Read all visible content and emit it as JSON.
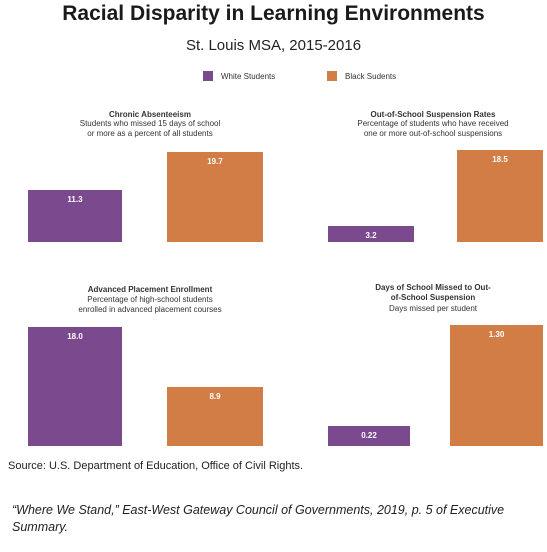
{
  "title": "Racial Disparity in Learning Environments",
  "subtitle": "St. Louis MSA, 2015-2016",
  "legend": [
    {
      "label": "White Students",
      "color": "#7b4a8e"
    },
    {
      "label": "Black Sudents",
      "color": "#d27d45"
    }
  ],
  "chart_data": [
    {
      "type": "bar",
      "title": "Chronic Absenteeism",
      "description_lines": [
        "Students who missed 15 days of school",
        "or more as a percent of all students"
      ],
      "categories": [
        "White Students",
        "Black Sudents"
      ],
      "values": [
        11.3,
        19.7
      ],
      "value_labels": [
        "11.3",
        "19.7"
      ]
    },
    {
      "type": "bar",
      "title": "Out-of-School Suspension Rates",
      "description_lines": [
        "Percentage of students who have received",
        "one or more out-of-school suspensions"
      ],
      "categories": [
        "White Students",
        "Black Sudents"
      ],
      "values": [
        3.2,
        18.5
      ],
      "value_labels": [
        "3.2",
        "18.5"
      ]
    },
    {
      "type": "bar",
      "title": "Advanced Placement Enrollment",
      "description_lines": [
        "Percentage of high-school students",
        "enrolled in advanced placement courses"
      ],
      "categories": [
        "White Students",
        "Black Sudents"
      ],
      "values": [
        18.0,
        8.9
      ],
      "value_labels": [
        "18.0",
        "8.9"
      ]
    },
    {
      "type": "bar",
      "title_lines": [
        "Days of School Missed to Out-",
        "of-School Suspension"
      ],
      "description_lines": [
        "Days missed per student"
      ],
      "categories": [
        "White Students",
        "Black Sudents"
      ],
      "values": [
        0.22,
        1.3
      ],
      "value_labels": [
        "0.22",
        "1.30"
      ]
    }
  ],
  "source": "Source: U.S. Department of Education, Office of Civil Rights.",
  "citation": "“Where We Stand,” East-West Gateway Council of Governments, 2019, p. 5 of Executive Summary."
}
